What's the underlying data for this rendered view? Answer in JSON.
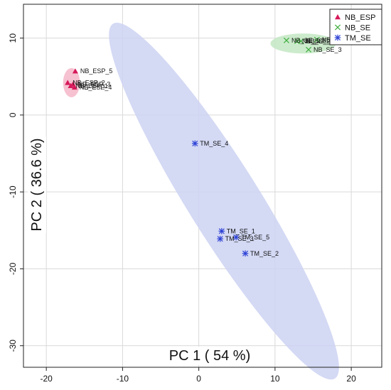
{
  "chart_data": {
    "type": "scatter",
    "xlabel": "PC 1 ( 54 %)",
    "ylabel": "PC 2 ( 36.6 %)",
    "xlim": [
      -23,
      24
    ],
    "ylim": [
      -32.8,
      14.4
    ],
    "x_ticks": [
      -20,
      -10,
      0,
      10,
      20
    ],
    "y_ticks": [
      -30,
      -20,
      -10,
      0,
      10
    ],
    "grid": true,
    "legend_position": "top-right",
    "series": [
      {
        "name": "NB_ESP",
        "marker": "triangle",
        "color": "#d6195a",
        "ellipse_color": "#f4b6c8",
        "ellipse": {
          "cx": -16.7,
          "cy": 4.2,
          "rx": 1.1,
          "ry": 1.9,
          "angle_deg": 0
        },
        "points": [
          {
            "label": "NB_ESP_5",
            "x": -16.2,
            "y": 5.7
          },
          {
            "label": "NB_ESP_2",
            "x": -17.2,
            "y": 4.2
          },
          {
            "label": "NB_ESP_3",
            "x": -16.5,
            "y": 4.0
          },
          {
            "label": "NB_ESP_1",
            "x": -16.8,
            "y": 3.8
          },
          {
            "label": "NB_ESP_4",
            "x": -16.3,
            "y": 3.6
          }
        ]
      },
      {
        "name": "NB_SE",
        "marker": "x",
        "color": "#3fae3f",
        "ellipse_color": "#c3e8c3",
        "ellipse": {
          "cx": 13.7,
          "cy": 9.3,
          "rx": 4.3,
          "ry": 1.3,
          "angle_deg": 0
        },
        "points": [
          {
            "label": "NB_SE_1",
            "x": 11.5,
            "y": 9.7
          },
          {
            "label": "NB_SE_2",
            "x": 12.9,
            "y": 9.6
          },
          {
            "label": "NB_SE_5",
            "x": 13.4,
            "y": 9.6
          },
          {
            "label": "NB_SE_4",
            "x": 15.5,
            "y": 9.8
          },
          {
            "label": "NB_SE_3",
            "x": 14.4,
            "y": 8.5
          }
        ]
      },
      {
        "name": "TM_SE",
        "marker": "asterisk",
        "color": "#2e43d6",
        "ellipse_color": "#cdd2f2",
        "ellipse": {
          "cx": 3.3,
          "cy": -11.2,
          "rx": 4.7,
          "ry": 27.2,
          "angle_deg": -32
        },
        "points": [
          {
            "label": "TM_SE_4",
            "x": -0.5,
            "y": -3.7
          },
          {
            "label": "TM_SE_1",
            "x": 3.0,
            "y": -15.1
          },
          {
            "label": "TM_SE_3",
            "x": 2.8,
            "y": -16.1
          },
          {
            "label": "TM_SE_5",
            "x": 4.9,
            "y": -15.9
          },
          {
            "label": "TM_SE_2",
            "x": 6.1,
            "y": -18.0
          }
        ]
      }
    ]
  }
}
